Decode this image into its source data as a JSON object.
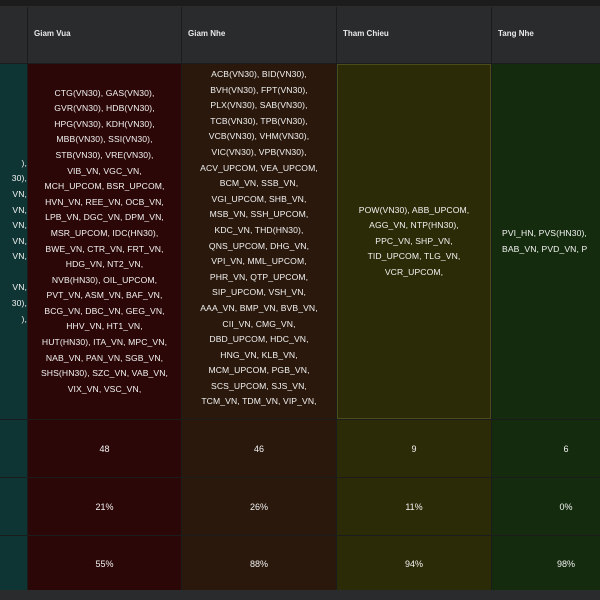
{
  "colors": {
    "page_background": "#1c1c1c",
    "header_background": "#2a2b2d",
    "col0_background": "#0e3433",
    "giam_vua_background": "#2c0707",
    "giam_nhe_background": "#2a180c",
    "tham_chieu_background": "#2c2b07",
    "tang_nhe_background": "#142c0d"
  },
  "headers": {
    "col0": "",
    "giam_vua": "Giam Vua",
    "giam_nhe": "Giam Nhe",
    "tham_chieu": "Tham Chieu",
    "tang_nhe": "Tang Nhe"
  },
  "col0_lines": [
    "),",
    "30),",
    "VN,",
    "VN,",
    "VN,",
    "VN,",
    "VN,",
    "",
    "VN,",
    "30),",
    "),"
  ],
  "giam_vua_lines": [
    "CTG(VN30), GAS(VN30),",
    "GVR(VN30), HDB(VN30),",
    "HPG(VN30), KDH(VN30),",
    "MBB(VN30), SSI(VN30),",
    "STB(VN30), VRE(VN30),",
    "VIB_VN, VGC_VN,",
    "MCH_UPCOM, BSR_UPCOM,",
    "HVN_VN, REE_VN, OCB_VN,",
    "LPB_VN, DGC_VN, DPM_VN,",
    "MSR_UPCOM, IDC(HN30),",
    "BWE_VN, CTR_VN, FRT_VN,",
    "HDG_VN, NT2_VN,",
    "NVB(HN30), OIL_UPCOM,",
    "PVT_VN, ASM_VN, BAF_VN,",
    "BCG_VN, DBC_VN, GEG_VN,",
    "HHV_VN, HT1_VN,",
    "HUT(HN30), ITA_VN, MPC_VN,",
    "NAB_VN, PAN_VN, SGB_VN,",
    "SHS(HN30), SZC_VN, VAB_VN,",
    "VIX_VN, VSC_VN,"
  ],
  "giam_nhe_lines": [
    "ACB(VN30), BID(VN30),",
    "BVH(VN30), FPT(VN30),",
    "PLX(VN30), SAB(VN30),",
    "TCB(VN30), TPB(VN30),",
    "VCB(VN30), VHM(VN30),",
    "VIC(VN30), VPB(VN30),",
    "ACV_UPCOM, VEA_UPCOM,",
    "BCM_VN, SSB_VN,",
    "VGI_UPCOM, SHB_VN,",
    "MSB_VN, SSH_UPCOM,",
    "KDC_VN, THD(HN30),",
    "QNS_UPCOM, DHG_VN,",
    "VPI_VN, MML_UPCOM,",
    "PHR_VN, QTP_UPCOM,",
    "SIP_UPCOM, VSH_VN,",
    "AAA_VN, BMP_VN, BVB_VN,",
    "CII_VN, CMG_VN,",
    "DBD_UPCOM, HDC_VN,",
    "HNG_VN, KLB_VN,",
    "MCM_UPCOM, PGB_VN,",
    "SCS_UPCOM, SJS_VN,",
    "TCM_VN, TDM_VN, VIP_VN,"
  ],
  "tham_chieu_lines": [
    "POW(VN30), ABB_UPCOM,",
    "AGG_VN, NTP(HN30),",
    "PPC_VN, SHP_VN,",
    "TID_UPCOM, TLG_VN,",
    "VCR_UPCOM,"
  ],
  "tang_nhe_lines": [
    "PVI_HN, PVS(HN30),",
    "BAB_VN, PVD_VN, P"
  ],
  "row_a": {
    "giam_vua": "48",
    "giam_nhe": "46",
    "tham_chieu": "9",
    "tang_nhe": "6"
  },
  "row_b": {
    "giam_vua": "21%",
    "giam_nhe": "26%",
    "tham_chieu": "11%",
    "tang_nhe": "0%"
  },
  "row_c": {
    "giam_vua": "55%",
    "giam_nhe": "88%",
    "tham_chieu": "94%",
    "tang_nhe": "98%"
  }
}
